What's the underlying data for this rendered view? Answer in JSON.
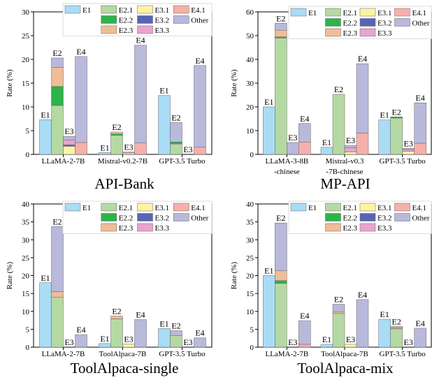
{
  "legend_labels": {
    "E1": "E1",
    "E2.1": "E2.1",
    "E3.1": "E3.1",
    "E4.1": "E4.1",
    "E2.2": "E2.2",
    "E3.2": "E3.2",
    "Other": "Other",
    "E2.3": "E2.3",
    "E3.3": "E3.3"
  },
  "colors": {
    "E1": "#a9dcf5",
    "E2.1": "#b5d9a3",
    "E2.2": "#2db34a",
    "E2.3": "#efbd98",
    "E3.1": "#fbf4a6",
    "E3.2": "#5965b3",
    "E3.3": "#e8a5cc",
    "E4.1": "#f6b0a9",
    "Other": "#b9b9dc"
  },
  "chart_data": [
    {
      "type": "bar",
      "title": "API-Bank",
      "ylabel": "Rate (%)",
      "ylim": [
        0,
        30
      ],
      "yticks": [
        0,
        5,
        10,
        15,
        20,
        25,
        30
      ],
      "categories": [
        "LLaMA-2-7B",
        "Mistral-v0.2-7B",
        "GPT-3.5 Turbo"
      ],
      "bar_labels": [
        "E1",
        "E2",
        "E3",
        "E4"
      ],
      "groups": [
        {
          "E1": {
            "E1": 7.3
          },
          "E2": {
            "E2.1": 10.3,
            "E2.2": 4.0,
            "E2.3": 4.0,
            "Other": 2.0
          },
          "E3": {
            "E3.1": 1.7,
            "E3.2": 0.3,
            "E3.3": 1.0,
            "Other": 0.8
          },
          "E4": {
            "E4.1": 2.5,
            "Other": 18.1
          }
        },
        {
          "E1": {
            "E1": 0.4
          },
          "E2": {
            "E2.1": 4.0,
            "E2.2": 0.3,
            "E2.3": 0.4
          },
          "E3": {
            "E3.1": 0.3,
            "E3.3": 0.2
          },
          "E4": {
            "E4.1": 2.4,
            "Other": 20.6
          }
        },
        {
          "E1": {
            "E1": 12.4
          },
          "E2": {
            "E2.1": 2.2,
            "E2.2": 0.4,
            "Other": 4.1
          },
          "E3": {},
          "E4": {
            "E4.1": 1.5,
            "Other": 17.2
          }
        }
      ]
    },
    {
      "type": "bar",
      "title": "MP-API",
      "ylabel": "Rate (%)",
      "ylim": [
        0,
        60
      ],
      "yticks": [
        0,
        10,
        20,
        30,
        40,
        50,
        60
      ],
      "categories": [
        "LLaMA-3-8B\n-chinese",
        "Mistral-v0.3\n-7B-chinese",
        "GPT-3.5 Turbo"
      ],
      "bar_labels": [
        "E1",
        "E2",
        "E3",
        "E4"
      ],
      "groups": [
        {
          "E1": {
            "E1": 20.0
          },
          "E2": {
            "E2.1": 49.0,
            "E2.2": 0.5,
            "E2.3": 2.8,
            "Other": 2.9
          },
          "E3": {
            "Other": 5.0
          },
          "E4": {
            "E4.1": 5.2,
            "Other": 7.8
          }
        },
        {
          "E1": {
            "E1": 3.0
          },
          "E2": {
            "E2.1": 25.3
          },
          "E3": {
            "E3.1": 1.0,
            "E3.3": 1.8,
            "Other": 1.0
          },
          "E4": {
            "E4.1": 9.0,
            "Other": 29.2
          }
        },
        {
          "E1": {
            "E1": 14.5
          },
          "E2": {
            "E2.1": 15.3,
            "E2.2": 0.5
          },
          "E3": {
            "E3.1": 1.3,
            "E3.3": 0.8,
            "Other": 0.4
          },
          "E4": {
            "E4.1": 4.7,
            "Other": 17.0
          }
        }
      ]
    },
    {
      "type": "bar",
      "title": "ToolAlpaca-single",
      "ylabel": "Rate (%)",
      "ylim": [
        0,
        40
      ],
      "yticks": [
        0,
        5,
        10,
        15,
        20,
        25,
        30,
        35,
        40
      ],
      "categories": [
        "LLaMA-2-7B",
        "ToolAlpaca-7B",
        "GPT-3.5 Turbo"
      ],
      "bar_labels": [
        "E1",
        "E2",
        "E3",
        "E4"
      ],
      "groups": [
        {
          "E1": {
            "E1": 18.0
          },
          "E2": {
            "E2.1": 14.0,
            "E2.3": 1.5,
            "Other": 18.2
          },
          "E3": {},
          "E4": {
            "Other": 3.5
          }
        },
        {
          "E1": {
            "E1": 1.0
          },
          "E2": {
            "E2.1": 7.9,
            "E2.3": 0.8
          },
          "E3": {
            "E3.1": 0.9
          },
          "E4": {
            "Other": 7.7
          }
        },
        {
          "E1": {
            "E1": 5.2
          },
          "E2": {
            "E2.1": 3.2,
            "Other": 1.4
          },
          "E3": {},
          "E4": {
            "Other": 2.6
          }
        }
      ]
    },
    {
      "type": "bar",
      "title": "ToolAlpaca-mix",
      "ylabel": "Rate (%)",
      "ylim": [
        0,
        40
      ],
      "yticks": [
        0,
        5,
        10,
        15,
        20,
        25,
        30,
        35,
        40
      ],
      "categories": [
        "LLaMA-2-7B",
        "ToolAlpaca-7B",
        "GPT-3.5 Turbo"
      ],
      "bar_labels": [
        "E1",
        "E2",
        "E3",
        "E4"
      ],
      "groups": [
        {
          "E1": {
            "E1": 20.0
          },
          "E2": {
            "E2.1": 17.8,
            "E2.2": 0.8,
            "E2.3": 2.8,
            "Other": 13.3
          },
          "E3": {},
          "E4": {
            "E4.1": 0.8,
            "Other": 6.6
          }
        },
        {
          "E1": {
            "E1": 0.8
          },
          "E2": {
            "E2.1": 9.4,
            "E2.3": 0.5,
            "Other": 2.1
          },
          "E3": {
            "E3.1": 0.8
          },
          "E4": {
            "Other": 13.3
          }
        },
        {
          "E1": {
            "E1": 7.8
          },
          "E2": {
            "E2.1": 5.1,
            "E2.3": 0.3,
            "Other": 0.4
          },
          "E3": {},
          "E4": {
            "Other": 5.3
          }
        }
      ]
    }
  ]
}
